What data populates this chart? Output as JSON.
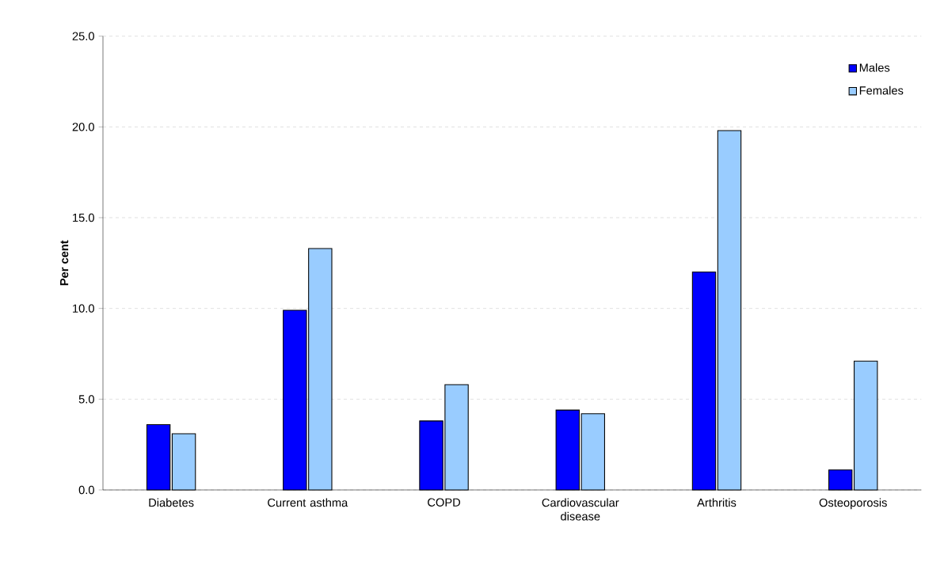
{
  "chart_data": {
    "type": "bar",
    "ylabel": "Per cent",
    "categories": [
      "Diabetes",
      "Current asthma",
      "COPD",
      "Cardiovascular disease",
      "Arthritis",
      "Osteoporosis"
    ],
    "series": [
      {
        "name": "Males",
        "color": "#0000ff",
        "values": [
          3.6,
          9.9,
          3.8,
          4.4,
          12.0,
          1.1
        ]
      },
      {
        "name": "Females",
        "color": "#99ccff",
        "values": [
          3.1,
          13.3,
          5.8,
          4.2,
          19.8,
          7.1
        ]
      }
    ],
    "ylim": [
      0,
      25
    ],
    "yticks": [
      {
        "value": 0,
        "label": "0.0"
      },
      {
        "value": 5,
        "label": "5.0"
      },
      {
        "value": 10,
        "label": "10.0"
      },
      {
        "value": 15,
        "label": "15.0"
      },
      {
        "value": 20,
        "label": "20.0"
      },
      {
        "value": 25,
        "label": "25.0"
      }
    ],
    "grid": "y",
    "legend": "top right"
  }
}
